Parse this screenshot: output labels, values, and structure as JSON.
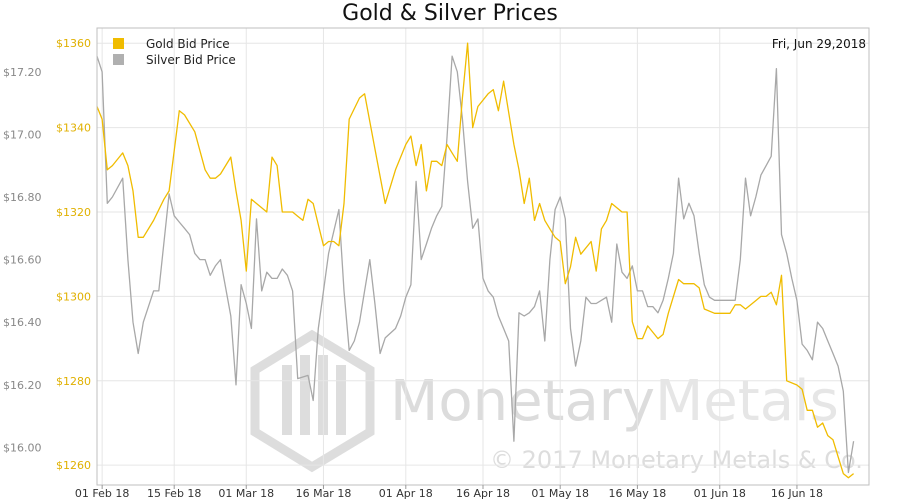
{
  "chart_data": {
    "type": "line",
    "title": "Gold & Silver Prices",
    "date_label": "Fri, Jun 29,2018",
    "watermark": {
      "name": "MonetaryMetals",
      "name_part1": "Monetary",
      "name_part2": "Metals",
      "copyright": "© 2017 Monetary Metals & Co."
    },
    "legend_position": "top-left",
    "grid": true,
    "x_ticks": [
      {
        "day": 0,
        "label": "01 Feb 18"
      },
      {
        "day": 14,
        "label": "15 Feb 18"
      },
      {
        "day": 28,
        "label": "01 Mar 18"
      },
      {
        "day": 43,
        "label": "16 Mar 18"
      },
      {
        "day": 59,
        "label": "01 Apr 18"
      },
      {
        "day": 74,
        "label": "16 Apr 18"
      },
      {
        "day": 89,
        "label": "01 May 18"
      },
      {
        "day": 104,
        "label": "16 May 18"
      },
      {
        "day": 120,
        "label": "01 Jun 18"
      },
      {
        "day": 135,
        "label": "16 Jun 18"
      }
    ],
    "xlim_days": [
      -1,
      149
    ],
    "gold_axis": {
      "ylim": [
        1255.3,
        1363.6
      ],
      "ticks": [
        1260,
        1280,
        1300,
        1320,
        1340,
        1360
      ],
      "tick_labels": [
        "$1260",
        "$1280",
        "$1300",
        "$1320",
        "$1340",
        "$1360"
      ]
    },
    "silver_axis": {
      "ylim": [
        15.88,
        17.34
      ],
      "ticks": [
        16.0,
        16.2,
        16.4,
        16.6,
        16.8,
        17.0,
        17.2
      ],
      "tick_labels": [
        "$16.00",
        "$16.20",
        "$16.40",
        "$16.60",
        "$16.80",
        "$17.00",
        "$17.20"
      ]
    },
    "series": [
      {
        "name": "Gold Bid Price",
        "color": "#f0bc00",
        "axis": "gold",
        "points": [
          [
            -1,
            1345
          ],
          [
            0,
            1342
          ],
          [
            1,
            1330
          ],
          [
            2,
            1331
          ],
          [
            4,
            1334
          ],
          [
            5,
            1331
          ],
          [
            6,
            1325
          ],
          [
            7,
            1314
          ],
          [
            8,
            1314
          ],
          [
            10,
            1318
          ],
          [
            12,
            1323
          ],
          [
            13,
            1325
          ],
          [
            15,
            1344
          ],
          [
            16,
            1343
          ],
          [
            18,
            1339
          ],
          [
            20,
            1330
          ],
          [
            21,
            1328
          ],
          [
            22,
            1328
          ],
          [
            23,
            1329
          ],
          [
            25,
            1333
          ],
          [
            26,
            1325
          ],
          [
            27,
            1318
          ],
          [
            28,
            1306
          ],
          [
            29,
            1323
          ],
          [
            30,
            1322
          ],
          [
            32,
            1320
          ],
          [
            33,
            1333
          ],
          [
            34,
            1331
          ],
          [
            35,
            1320
          ],
          [
            37,
            1320
          ],
          [
            38,
            1319
          ],
          [
            39,
            1318
          ],
          [
            40,
            1323
          ],
          [
            41,
            1322
          ],
          [
            42,
            1317
          ],
          [
            43,
            1312
          ],
          [
            44,
            1313
          ],
          [
            45,
            1313
          ],
          [
            46,
            1312
          ],
          [
            47,
            1322
          ],
          [
            48,
            1342
          ],
          [
            50,
            1347
          ],
          [
            51,
            1348
          ],
          [
            53,
            1335
          ],
          [
            55,
            1322
          ],
          [
            57,
            1330
          ],
          [
            59,
            1336
          ],
          [
            60,
            1338
          ],
          [
            61,
            1331
          ],
          [
            62,
            1336
          ],
          [
            63,
            1325
          ],
          [
            64,
            1332
          ],
          [
            65,
            1332
          ],
          [
            66,
            1331
          ],
          [
            67,
            1336
          ],
          [
            68,
            1334
          ],
          [
            69,
            1332
          ],
          [
            70,
            1347
          ],
          [
            71,
            1360
          ],
          [
            72,
            1340
          ],
          [
            73,
            1345
          ],
          [
            75,
            1348
          ],
          [
            76,
            1349
          ],
          [
            77,
            1344
          ],
          [
            78,
            1351
          ],
          [
            80,
            1336
          ],
          [
            81,
            1330
          ],
          [
            82,
            1322
          ],
          [
            83,
            1328
          ],
          [
            84,
            1318
          ],
          [
            85,
            1322
          ],
          [
            86,
            1318
          ],
          [
            87,
            1316
          ],
          [
            88,
            1314
          ],
          [
            89,
            1313
          ],
          [
            90,
            1303
          ],
          [
            91,
            1307
          ],
          [
            92,
            1314
          ],
          [
            93,
            1310
          ],
          [
            95,
            1313
          ],
          [
            96,
            1306
          ],
          [
            97,
            1316
          ],
          [
            98,
            1318
          ],
          [
            99,
            1322
          ],
          [
            101,
            1320
          ],
          [
            102,
            1320
          ],
          [
            103,
            1294
          ],
          [
            104,
            1290
          ],
          [
            105,
            1290
          ],
          [
            106,
            1293
          ],
          [
            108,
            1290
          ],
          [
            109,
            1291
          ],
          [
            110,
            1296
          ],
          [
            112,
            1304
          ],
          [
            113,
            1303
          ],
          [
            115,
            1303
          ],
          [
            116,
            1302
          ],
          [
            117,
            1297
          ],
          [
            119,
            1296
          ],
          [
            120,
            1296
          ],
          [
            122,
            1296
          ],
          [
            123,
            1298
          ],
          [
            124,
            1298
          ],
          [
            125,
            1297
          ],
          [
            127,
            1299
          ],
          [
            128,
            1300
          ],
          [
            129,
            1300
          ],
          [
            130,
            1301
          ],
          [
            131,
            1298
          ],
          [
            132,
            1305
          ],
          [
            133,
            1280
          ],
          [
            135,
            1279
          ],
          [
            136,
            1278
          ],
          [
            137,
            1273
          ],
          [
            138,
            1273
          ],
          [
            139,
            1269
          ],
          [
            140,
            1270
          ],
          [
            141,
            1267
          ],
          [
            142,
            1266
          ],
          [
            143,
            1262
          ],
          [
            144,
            1258
          ],
          [
            145,
            1257
          ],
          [
            146,
            1258
          ]
        ]
      },
      {
        "name": "Silver Bid Price",
        "color": "#a8a8a8",
        "axis": "silver",
        "points": [
          [
            -1,
            17.25
          ],
          [
            0,
            17.2
          ],
          [
            1,
            16.78
          ],
          [
            2,
            16.8
          ],
          [
            4,
            16.86
          ],
          [
            5,
            16.6
          ],
          [
            6,
            16.4
          ],
          [
            7,
            16.3
          ],
          [
            8,
            16.4
          ],
          [
            10,
            16.5
          ],
          [
            11,
            16.5
          ],
          [
            13,
            16.81
          ],
          [
            14,
            16.74
          ],
          [
            15,
            16.72
          ],
          [
            16,
            16.7
          ],
          [
            17,
            16.68
          ],
          [
            18,
            16.62
          ],
          [
            19,
            16.6
          ],
          [
            20,
            16.6
          ],
          [
            21,
            16.55
          ],
          [
            22,
            16.58
          ],
          [
            23,
            16.6
          ],
          [
            25,
            16.42
          ],
          [
            26,
            16.2
          ],
          [
            27,
            16.52
          ],
          [
            28,
            16.46
          ],
          [
            29,
            16.38
          ],
          [
            30,
            16.73
          ],
          [
            31,
            16.5
          ],
          [
            32,
            16.56
          ],
          [
            33,
            16.54
          ],
          [
            34,
            16.54
          ],
          [
            35,
            16.57
          ],
          [
            36,
            16.55
          ],
          [
            37,
            16.5
          ],
          [
            38,
            16.22
          ],
          [
            40,
            16.23
          ],
          [
            41,
            16.15
          ],
          [
            42,
            16.38
          ],
          [
            43,
            16.5
          ],
          [
            44,
            16.62
          ],
          [
            46,
            16.76
          ],
          [
            47,
            16.5
          ],
          [
            48,
            16.31
          ],
          [
            49,
            16.34
          ],
          [
            50,
            16.4
          ],
          [
            51,
            16.5
          ],
          [
            52,
            16.6
          ],
          [
            53,
            16.46
          ],
          [
            54,
            16.3
          ],
          [
            55,
            16.35
          ],
          [
            57,
            16.38
          ],
          [
            58,
            16.42
          ],
          [
            59,
            16.48
          ],
          [
            60,
            16.52
          ],
          [
            61,
            16.85
          ],
          [
            62,
            16.6
          ],
          [
            63,
            16.65
          ],
          [
            64,
            16.7
          ],
          [
            65,
            16.74
          ],
          [
            66,
            16.77
          ],
          [
            67,
            16.99
          ],
          [
            68,
            17.25
          ],
          [
            69,
            17.2
          ],
          [
            70,
            17.05
          ],
          [
            71,
            16.85
          ],
          [
            72,
            16.7
          ],
          [
            73,
            16.73
          ],
          [
            74,
            16.54
          ],
          [
            75,
            16.5
          ],
          [
            76,
            16.48
          ],
          [
            77,
            16.42
          ],
          [
            78,
            16.38
          ],
          [
            79,
            16.34
          ],
          [
            80,
            16.02
          ],
          [
            81,
            16.43
          ],
          [
            82,
            16.42
          ],
          [
            83,
            16.43
          ],
          [
            84,
            16.45
          ],
          [
            85,
            16.5
          ],
          [
            86,
            16.34
          ],
          [
            87,
            16.6
          ],
          [
            88,
            16.76
          ],
          [
            89,
            16.8
          ],
          [
            90,
            16.73
          ],
          [
            91,
            16.38
          ],
          [
            92,
            16.26
          ],
          [
            93,
            16.34
          ],
          [
            94,
            16.48
          ],
          [
            95,
            16.46
          ],
          [
            96,
            16.46
          ],
          [
            97,
            16.47
          ],
          [
            98,
            16.48
          ],
          [
            99,
            16.4
          ],
          [
            100,
            16.65
          ],
          [
            101,
            16.56
          ],
          [
            102,
            16.54
          ],
          [
            103,
            16.58
          ],
          [
            104,
            16.5
          ],
          [
            105,
            16.5
          ],
          [
            106,
            16.45
          ],
          [
            107,
            16.45
          ],
          [
            108,
            16.43
          ],
          [
            109,
            16.47
          ],
          [
            110,
            16.54
          ],
          [
            111,
            16.62
          ],
          [
            112,
            16.86
          ],
          [
            113,
            16.73
          ],
          [
            114,
            16.78
          ],
          [
            115,
            16.74
          ],
          [
            116,
            16.62
          ],
          [
            117,
            16.52
          ],
          [
            118,
            16.48
          ],
          [
            119,
            16.47
          ],
          [
            120,
            16.47
          ],
          [
            121,
            16.47
          ],
          [
            122,
            16.47
          ],
          [
            123,
            16.47
          ],
          [
            124,
            16.6
          ],
          [
            125,
            16.86
          ],
          [
            126,
            16.74
          ],
          [
            127,
            16.8
          ],
          [
            128,
            16.87
          ],
          [
            129,
            16.9
          ],
          [
            130,
            16.93
          ],
          [
            131,
            17.21
          ],
          [
            132,
            16.68
          ],
          [
            133,
            16.62
          ],
          [
            134,
            16.54
          ],
          [
            135,
            16.47
          ],
          [
            136,
            16.33
          ],
          [
            137,
            16.31
          ],
          [
            138,
            16.28
          ],
          [
            139,
            16.4
          ],
          [
            140,
            16.38
          ],
          [
            141,
            16.34
          ],
          [
            142,
            16.3
          ],
          [
            143,
            16.26
          ],
          [
            144,
            16.18
          ],
          [
            145,
            15.92
          ],
          [
            146,
            16.02
          ]
        ]
      }
    ]
  }
}
